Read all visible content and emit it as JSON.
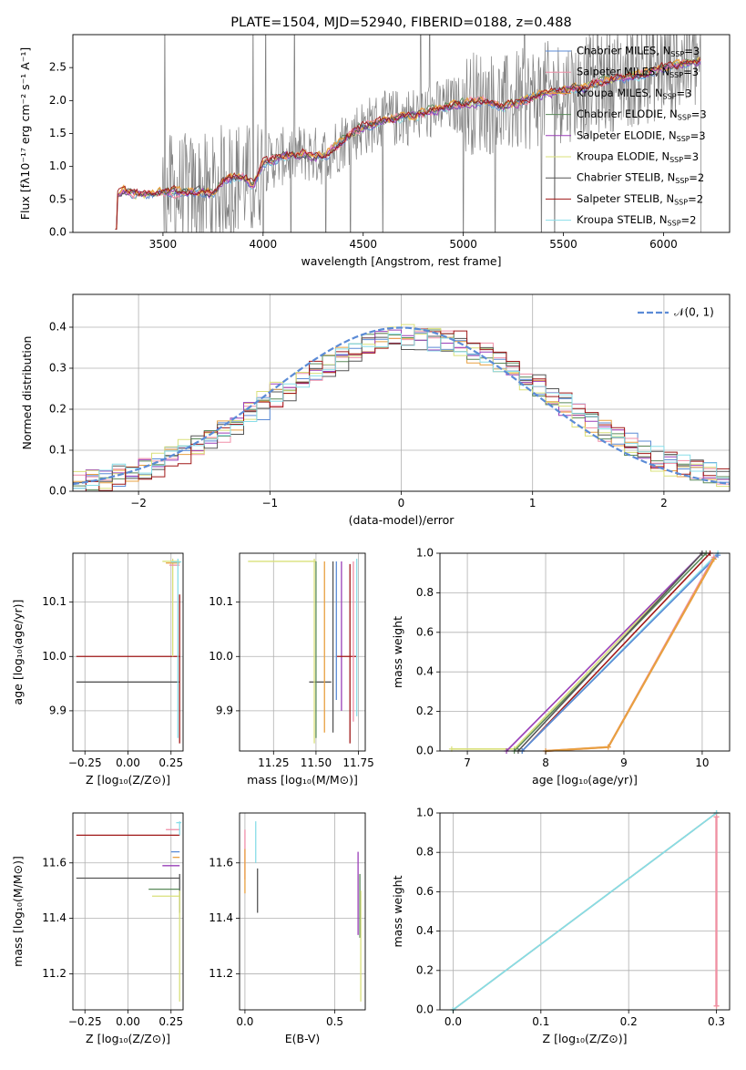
{
  "colors": {
    "Chabrier MILES": "#5b8bd6",
    "Salpeter MILES": "#f08fa8",
    "Kroupa MILES": "#e8a040",
    "Chabrier ELODIE": "#5a8a5a",
    "Salpeter ELODIE": "#9a3fb8",
    "Kroupa ELODIE": "#d9e07a",
    "Chabrier STELIB": "#555555",
    "Salpeter STELIB": "#a01818",
    "Kroupa STELIB": "#88dde8",
    "data": "#808080",
    "normal": "#5b8bd6"
  },
  "series": [
    {
      "name": "Chabrier MILES",
      "nssp": "3"
    },
    {
      "name": "Salpeter MILES",
      "nssp": "3"
    },
    {
      "name": "Kroupa MILES",
      "nssp": "3"
    },
    {
      "name": "Chabrier ELODIE",
      "nssp": "3"
    },
    {
      "name": "Salpeter ELODIE",
      "nssp": "3"
    },
    {
      "name": "Kroupa ELODIE",
      "nssp": "3"
    },
    {
      "name": "Chabrier STELIB",
      "nssp": "2"
    },
    {
      "name": "Salpeter STELIB",
      "nssp": "2"
    },
    {
      "name": "Kroupa STELIB",
      "nssp": "2"
    }
  ],
  "chart_data": [
    {
      "id": "spectrum",
      "type": "line",
      "title": "PLATE=1504, MJD=52940, FIBERID=0188, z=0.488",
      "xlabel": "wavelength [Angstrom, rest frame]",
      "ylabel": "Flux [fλ10⁻¹⁷ erg cm⁻² s⁻¹ A⁻¹]",
      "xlim": [
        3050,
        6330
      ],
      "ylim": [
        0,
        3.0
      ],
      "xticks": [
        3500,
        4000,
        4500,
        5000,
        5500,
        6000
      ],
      "yticks": [
        0.0,
        0.5,
        1.0,
        1.5,
        2.0,
        2.5
      ],
      "legend_placement": "top-right",
      "model_anchor_points": [
        [
          3260,
          0.05
        ],
        [
          3270,
          0.55
        ],
        [
          3300,
          0.62
        ],
        [
          3400,
          0.58
        ],
        [
          3500,
          0.6
        ],
        [
          3600,
          0.62
        ],
        [
          3700,
          0.62
        ],
        [
          3750,
          0.58
        ],
        [
          3800,
          0.8
        ],
        [
          3900,
          0.85
        ],
        [
          3950,
          0.7
        ],
        [
          4000,
          1.05
        ],
        [
          4100,
          1.15
        ],
        [
          4200,
          1.2
        ],
        [
          4300,
          1.15
        ],
        [
          4400,
          1.4
        ],
        [
          4500,
          1.6
        ],
        [
          4600,
          1.7
        ],
        [
          4700,
          1.75
        ],
        [
          4800,
          1.8
        ],
        [
          4900,
          1.9
        ],
        [
          5000,
          1.95
        ],
        [
          5100,
          2.0
        ],
        [
          5200,
          1.9
        ],
        [
          5300,
          2.0
        ],
        [
          5400,
          2.1
        ],
        [
          5500,
          2.15
        ],
        [
          5600,
          2.2
        ],
        [
          5700,
          2.3
        ],
        [
          5800,
          2.35
        ],
        [
          5900,
          2.4
        ],
        [
          6000,
          2.5
        ],
        [
          6100,
          2.55
        ],
        [
          6180,
          2.6
        ]
      ]
    },
    {
      "id": "residuals",
      "type": "line",
      "xlabel": "(data-model)/error",
      "ylabel": "Normed distribution",
      "xlim": [
        -2.5,
        2.5
      ],
      "ylim": [
        0,
        0.48
      ],
      "xticks": [
        -2,
        -1,
        0,
        1,
        2
      ],
      "yticks": [
        0.0,
        0.1,
        0.2,
        0.3,
        0.4
      ],
      "legend": "𝒩(0, 1)",
      "legend_placement": "top-right",
      "bin_width": 0.1,
      "grid": true
    },
    {
      "id": "age-vs-Z",
      "type": "scatter",
      "xlabel": "Z [log₁₀(Z/Z⊙)]",
      "ylabel": "age  [log₁₀(age/yr)]",
      "xlim": [
        -0.32,
        0.32
      ],
      "ylim": [
        9.826,
        10.19
      ],
      "xticks": [
        -0.25,
        0.0,
        0.25
      ],
      "xticklabels": [
        "−0.25",
        "0.00",
        "0.25"
      ],
      "yticks": [
        9.9,
        10.0,
        10.1
      ],
      "ytick_labels": [
        "9.9",
        "10.0",
        "10.1"
      ],
      "grid": true,
      "bars": [
        {
          "s": "Chabrier STELIB",
          "x": 0.3,
          "y": 9.953,
          "x0": -0.3,
          "x1": 0.3
        },
        {
          "s": "Salpeter STELIB",
          "x": 0.3,
          "y": 10.0,
          "x0": -0.3,
          "x1": 0.3,
          "y0": 9.84,
          "y1": 10.114
        },
        {
          "s": "Kroupa ELODIE",
          "x": 0.26,
          "y": 10.175,
          "x0": 0.2,
          "x1": 0.3,
          "y0": 10.0,
          "y1": 10.18
        },
        {
          "s": "Salpeter MILES",
          "x": 0.28,
          "y": 10.168,
          "x0": 0.24,
          "x1": 0.3
        },
        {
          "s": "Kroupa MILES",
          "x": 0.28,
          "y": 10.172,
          "x0": 0.22,
          "x1": 0.3
        },
        {
          "s": "Kroupa STELIB",
          "x": 0.29,
          "y": 10.174,
          "x0": 0.25,
          "x1": 0.31,
          "y0": 9.85,
          "y1": 10.18
        }
      ]
    },
    {
      "id": "age-vs-mass",
      "type": "scatter",
      "xlabel": "mass [log₁₀(M/M⊙)]",
      "ylim": [
        9.826,
        10.19
      ],
      "xlim": [
        11.05,
        11.79
      ],
      "xticks": [
        11.25,
        11.5,
        11.75
      ],
      "xticklabels": [
        "11.25",
        "11.50",
        "11.75"
      ],
      "yticks": [
        9.9,
        10.0,
        10.1
      ],
      "ytick_labels": [
        "9.9",
        "10.0",
        "10.1"
      ],
      "grid": true,
      "bars": [
        {
          "s": "Chabrier STELIB",
          "x": 11.54,
          "y": 9.953,
          "x0": 11.46,
          "x1": 11.59
        },
        {
          "s": "Kroupa ELODIE",
          "x": 11.49,
          "y": 10.175,
          "x0": 11.1,
          "x1": 11.5,
          "y0": 9.84,
          "y1": 10.18
        },
        {
          "s": "Chabrier ELODIE",
          "x": 11.5,
          "y": 10.172,
          "y0": 9.85,
          "y1": 10.175
        },
        {
          "s": "Kroupa MILES",
          "x": 11.55,
          "y": 10.17,
          "y0": 9.86,
          "y1": 10.175
        },
        {
          "s": "Chabrier STELIB",
          "x": 11.6,
          "y": 10.168,
          "y0": 9.86,
          "y1": 10.175
        },
        {
          "s": "Salpeter ELODIE",
          "x": 11.65,
          "y": 10.165,
          "y0": 9.9,
          "y1": 10.175
        },
        {
          "s": "Salpeter STELIB",
          "x": 11.7,
          "y": 10.0,
          "x0": 11.62,
          "x1": 11.74,
          "y0": 9.84,
          "y1": 10.17
        },
        {
          "s": "Salpeter MILES",
          "x": 11.72,
          "y": 10.168,
          "y0": 9.88,
          "y1": 10.175
        },
        {
          "s": "Kroupa STELIB",
          "x": 11.74,
          "y": 10.17,
          "y0": 9.89,
          "y1": 10.18
        },
        {
          "s": "Chabrier MILES",
          "x": 11.62,
          "y": 10.172,
          "y0": 9.92,
          "y1": 10.175
        }
      ]
    },
    {
      "id": "mass-weight-vs-age",
      "type": "line",
      "xlabel": "age  [log₁₀(age/yr)]",
      "ylabel": "mass weight",
      "xlim": [
        6.65,
        10.35
      ],
      "ylim": [
        0,
        1.0
      ],
      "xticks": [
        7,
        8,
        9,
        10
      ],
      "yticks": [
        0.0,
        0.2,
        0.4,
        0.6,
        0.8,
        1.0
      ],
      "ytick_labels": [
        "0.0",
        "0.2",
        "0.4",
        "0.6",
        "0.8",
        "1.0"
      ],
      "grid": true,
      "lines": [
        {
          "s": "Kroupa ELODIE",
          "pts": [
            [
              6.8,
              0.01
            ],
            [
              7.6,
              0.01
            ],
            [
              10.0,
              1.0
            ]
          ]
        },
        {
          "s": "Salpeter ELODIE",
          "pts": [
            [
              7.5,
              0.0
            ],
            [
              10.0,
              1.0
            ]
          ]
        },
        {
          "s": "Chabrier ELODIE",
          "pts": [
            [
              7.6,
              0.0
            ],
            [
              10.05,
              1.0
            ]
          ]
        },
        {
          "s": "Chabrier STELIB",
          "pts": [
            [
              7.65,
              0.0
            ],
            [
              10.0,
              1.0
            ]
          ]
        },
        {
          "s": "Salpeter STELIB",
          "pts": [
            [
              7.7,
              0.0
            ],
            [
              10.1,
              1.0
            ]
          ]
        },
        {
          "s": "Kroupa STELIB",
          "pts": [
            [
              7.7,
              0.0
            ],
            [
              10.2,
              1.0
            ]
          ]
        },
        {
          "s": "Chabrier MILES",
          "pts": [
            [
              7.7,
              0.0
            ],
            [
              10.2,
              0.99
            ]
          ]
        },
        {
          "s": "Salpeter MILES",
          "pts": [
            [
              8.0,
              0.0
            ],
            [
              8.8,
              0.02
            ],
            [
              10.15,
              0.98
            ]
          ]
        },
        {
          "s": "Kroupa MILES",
          "pts": [
            [
              8.0,
              0.0
            ],
            [
              8.8,
              0.02
            ],
            [
              10.15,
              0.97
            ]
          ]
        }
      ]
    },
    {
      "id": "mass-vs-Z",
      "type": "scatter",
      "xlabel": "Z [log₁₀(Z/Z⊙)]",
      "ylabel": "mass [log₁₀(M/M⊙)]",
      "xlim": [
        -0.32,
        0.32
      ],
      "ylim": [
        11.07,
        11.78
      ],
      "xticks": [
        -0.25,
        0.0,
        0.25
      ],
      "xticklabels": [
        "−0.25",
        "0.00",
        "0.25"
      ],
      "yticks": [
        11.2,
        11.4,
        11.6
      ],
      "ytick_labels": [
        "11.2",
        "11.4",
        "11.6"
      ],
      "grid": true,
      "bars": [
        {
          "s": "Salpeter STELIB",
          "x": 0.3,
          "y": 11.7,
          "x0": -0.3,
          "x1": 0.3
        },
        {
          "s": "Chabrier STELIB",
          "x": 0.3,
          "y": 11.545,
          "x0": -0.3,
          "x1": 0.3,
          "y0": 11.42,
          "y1": 11.56
        },
        {
          "s": "Salpeter MILES",
          "x": 0.3,
          "y": 11.72,
          "x0": 0.22,
          "x1": 0.3
        },
        {
          "s": "Kroupa STELIB",
          "x": 0.3,
          "y": 11.745,
          "x0": 0.28,
          "x1": 0.31,
          "y0": 11.7,
          "y1": 11.75
        },
        {
          "s": "Chabrier MILES",
          "x": 0.3,
          "y": 11.64,
          "x0": 0.25,
          "x1": 0.3
        },
        {
          "s": "Kroupa MILES",
          "x": 0.3,
          "y": 11.62,
          "x0": 0.26,
          "x1": 0.3
        },
        {
          "s": "Salpeter ELODIE",
          "x": 0.3,
          "y": 11.59,
          "x0": 0.2,
          "x1": 0.3
        },
        {
          "s": "Chabrier ELODIE",
          "x": 0.3,
          "y": 11.505,
          "x0": 0.12,
          "x1": 0.3
        },
        {
          "s": "Kroupa ELODIE",
          "x": 0.3,
          "y": 11.48,
          "x0": 0.14,
          "x1": 0.3,
          "y0": 11.1,
          "y1": 11.5
        }
      ]
    },
    {
      "id": "mass-vs-EBV",
      "type": "scatter",
      "xlabel": "E(B-V)",
      "xlim": [
        -0.03,
        0.67
      ],
      "ylim": [
        11.07,
        11.78
      ],
      "xticks": [
        0.0,
        0.5
      ],
      "xticklabels": [
        "0.0",
        "0.5"
      ],
      "yticks": [
        11.2,
        11.4,
        11.6
      ],
      "ytick_labels": [
        "11.2",
        "11.4",
        "11.6"
      ],
      "grid": true,
      "bars": [
        {
          "s": "Salpeter MILES",
          "x": 0.0,
          "y": 11.62,
          "y0": 11.54,
          "y1": 11.72
        },
        {
          "s": "Kroupa MILES",
          "x": 0.0,
          "y": 11.56,
          "y0": 11.49,
          "y1": 11.65
        },
        {
          "s": "Kroupa STELIB",
          "x": 0.06,
          "y": 11.7,
          "y0": 11.6,
          "y1": 11.75
        },
        {
          "s": "Chabrier STELIB",
          "x": 0.07,
          "y": 11.55,
          "y0": 11.42,
          "y1": 11.58
        },
        {
          "s": "Salpeter ELODIE",
          "x": 0.63,
          "y": 11.55,
          "y0": 11.34,
          "y1": 11.64
        },
        {
          "s": "Chabrier ELODIE",
          "x": 0.64,
          "y": 11.5,
          "y0": 11.33,
          "y1": 11.56
        },
        {
          "s": "Kroupa ELODIE",
          "x": 0.645,
          "y": 11.45,
          "y0": 11.1,
          "y1": 11.5
        }
      ]
    },
    {
      "id": "mass-weight-vs-Z",
      "type": "line",
      "xlabel": "Z [log₁₀(Z/Z⊙)]",
      "ylabel": "mass weight",
      "xlim": [
        -0.015,
        0.315
      ],
      "ylim": [
        0,
        1.0
      ],
      "xticks": [
        0.0,
        0.1,
        0.2,
        0.3
      ],
      "xticklabels": [
        "0.0",
        "0.1",
        "0.2",
        "0.3"
      ],
      "yticks": [
        0.0,
        0.2,
        0.4,
        0.6,
        0.8,
        1.0
      ],
      "ytick_labels": [
        "0.0",
        "0.2",
        "0.4",
        "0.6",
        "0.8",
        "1.0"
      ],
      "grid": true,
      "lines": [
        {
          "s": "Chabrier ELODIE",
          "pts": [
            [
              0.0,
              0.0
            ],
            [
              0.3,
              1.0
            ]
          ]
        },
        {
          "s": "Kroupa STELIB",
          "pts": [
            [
              0.0,
              0.0
            ],
            [
              0.3,
              1.0
            ]
          ]
        },
        {
          "s": "Kroupa MILES",
          "pts": [
            [
              0.3,
              0.02
            ],
            [
              0.3,
              0.98
            ]
          ]
        },
        {
          "s": "Salpeter MILES",
          "pts": [
            [
              0.3,
              0.02
            ],
            [
              0.3,
              0.98
            ]
          ]
        }
      ]
    }
  ]
}
